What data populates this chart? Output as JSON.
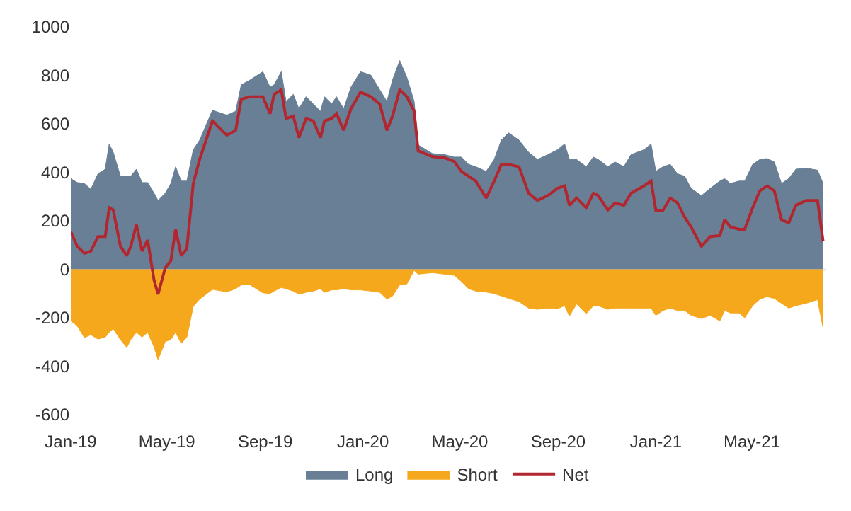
{
  "chart_data": {
    "type": "area",
    "x": [
      "2019-01-01",
      "2019-01-09",
      "2019-01-18",
      "2019-01-26",
      "2019-02-04",
      "2019-02-13",
      "2019-02-18",
      "2019-02-23",
      "2019-03-04",
      "2019-03-12",
      "2019-03-17",
      "2019-03-24",
      "2019-03-31",
      "2019-04-07",
      "2019-04-15",
      "2019-04-20",
      "2019-04-29",
      "2019-05-06",
      "2019-05-12",
      "2019-05-19",
      "2019-05-26",
      "2019-06-03",
      "2019-06-11",
      "2019-06-27",
      "2019-07-15",
      "2019-07-26",
      "2019-08-02",
      "2019-08-13",
      "2019-08-29",
      "2019-09-07",
      "2019-09-12",
      "2019-09-21",
      "2019-09-27",
      "2019-10-06",
      "2019-10-13",
      "2019-10-22",
      "2019-10-31",
      "2019-11-09",
      "2019-11-14",
      "2019-11-23",
      "2019-11-29",
      "2019-12-08",
      "2019-12-17",
      "2019-12-29",
      "2020-01-11",
      "2020-01-22",
      "2020-01-31",
      "2020-02-07",
      "2020-02-16",
      "2020-02-25",
      "2020-03-05",
      "2020-03-10",
      "2020-03-28",
      "2020-04-12",
      "2020-04-24",
      "2020-05-03",
      "2020-05-12",
      "2020-05-21",
      "2020-06-03",
      "2020-06-13",
      "2020-06-22",
      "2020-07-01",
      "2020-07-14",
      "2020-07-26",
      "2020-08-06",
      "2020-08-19",
      "2020-08-31",
      "2020-09-09",
      "2020-09-15",
      "2020-09-24",
      "2020-10-06",
      "2020-10-15",
      "2020-10-21",
      "2020-11-02",
      "2020-11-11",
      "2020-11-22",
      "2020-12-01",
      "2020-12-17",
      "2020-12-26",
      "2021-01-01",
      "2021-01-10",
      "2021-01-19",
      "2021-01-28",
      "2021-02-06",
      "2021-02-14",
      "2021-02-27",
      "2021-03-10",
      "2021-03-22",
      "2021-03-28",
      "2021-04-04",
      "2021-04-15",
      "2021-04-22",
      "2021-05-02",
      "2021-05-11",
      "2021-05-20",
      "2021-05-29",
      "2021-06-07",
      "2021-06-16",
      "2021-06-25",
      "2021-07-08",
      "2021-07-22",
      "2021-07-29"
    ],
    "series": [
      {
        "name": "Long",
        "color": "#687f96",
        "values": [
          374,
          358,
          354,
          330,
          394,
          413,
          517,
          483,
          384,
          384,
          384,
          413,
          358,
          358,
          314,
          284,
          314,
          354,
          423,
          364,
          364,
          493,
          533,
          656,
          636,
          652,
          761,
          781,
          815,
          751,
          761,
          815,
          692,
          722,
          662,
          712,
          682,
          652,
          712,
          682,
          712,
          662,
          751,
          815,
          801,
          741,
          692,
          781,
          861,
          791,
          692,
          513,
          477,
          473,
          463,
          463,
          433,
          423,
          404,
          453,
          533,
          563,
          533,
          483,
          453,
          473,
          493,
          517,
          453,
          453,
          423,
          463,
          453,
          423,
          443,
          423,
          473,
          493,
          517,
          404,
          423,
          433,
          394,
          384,
          334,
          304,
          334,
          364,
          374,
          354,
          364,
          364,
          433,
          453,
          457,
          443,
          354,
          374,
          413,
          417,
          409,
          354
        ]
      },
      {
        "name": "Short",
        "color": "#f5a81c",
        "values": [
          -213,
          -233,
          -282,
          -270,
          -288,
          -280,
          -260,
          -245,
          -290,
          -322,
          -290,
          -260,
          -280,
          -260,
          -320,
          -372,
          -298,
          -290,
          -260,
          -306,
          -280,
          -153,
          -123,
          -83,
          -93,
          -80,
          -64,
          -64,
          -97,
          -100,
          -90,
          -75,
          -80,
          -90,
          -103,
          -95,
          -90,
          -80,
          -95,
          -85,
          -85,
          -80,
          -85,
          -85,
          -90,
          -95,
          -123,
          -110,
          -64,
          -60,
          -4,
          -20,
          -14,
          -20,
          -25,
          -50,
          -80,
          -90,
          -94,
          -100,
          -110,
          -120,
          -133,
          -160,
          -165,
          -160,
          -163,
          -150,
          -193,
          -143,
          -183,
          -150,
          -150,
          -165,
          -160,
          -160,
          -160,
          -160,
          -160,
          -190,
          -170,
          -160,
          -170,
          -170,
          -190,
          -203,
          -190,
          -213,
          -170,
          -180,
          -180,
          -200,
          -150,
          -123,
          -113,
          -120,
          -140,
          -160,
          -150,
          -140,
          -125,
          -243
        ]
      },
      {
        "name": "Net",
        "type": "line",
        "color": "#b2262f",
        "values": [
          155,
          95,
          66,
          75,
          135,
          135,
          254,
          245,
          95,
          56,
          95,
          185,
          75,
          121,
          -44,
          -103,
          6,
          36,
          165,
          56,
          85,
          354,
          453,
          612,
          553,
          573,
          702,
          712,
          712,
          642,
          722,
          741,
          622,
          632,
          543,
          622,
          612,
          543,
          612,
          622,
          642,
          573,
          662,
          731,
          712,
          682,
          573,
          632,
          741,
          712,
          652,
          489,
          465,
          460,
          445,
          404,
          384,
          364,
          294,
          364,
          433,
          433,
          423,
          314,
          284,
          304,
          334,
          344,
          264,
          294,
          254,
          314,
          304,
          244,
          274,
          264,
          314,
          344,
          364,
          244,
          244,
          294,
          274,
          215,
          175,
          95,
          135,
          139,
          205,
          175,
          165,
          165,
          254,
          324,
          344,
          324,
          205,
          191,
          264,
          284,
          284,
          115
        ]
      }
    ],
    "xlim": [
      "2019-01-01",
      "2021-08-01"
    ],
    "xticks": [
      {
        "value": "2019-01-01",
        "label": "Jan-19"
      },
      {
        "value": "2019-05-01",
        "label": "May-19"
      },
      {
        "value": "2019-09-01",
        "label": "Sep-19"
      },
      {
        "value": "2020-01-01",
        "label": "Jan-20"
      },
      {
        "value": "2020-05-01",
        "label": "May-20"
      },
      {
        "value": "2020-09-01",
        "label": "Sep-20"
      },
      {
        "value": "2021-01-01",
        "label": "Jan-21"
      },
      {
        "value": "2021-05-01",
        "label": "May-21"
      }
    ],
    "ylim": [
      -600,
      1000
    ],
    "yticks": [
      -600,
      -400,
      -200,
      0,
      200,
      400,
      600,
      800,
      1000
    ],
    "legend": "bottom"
  }
}
